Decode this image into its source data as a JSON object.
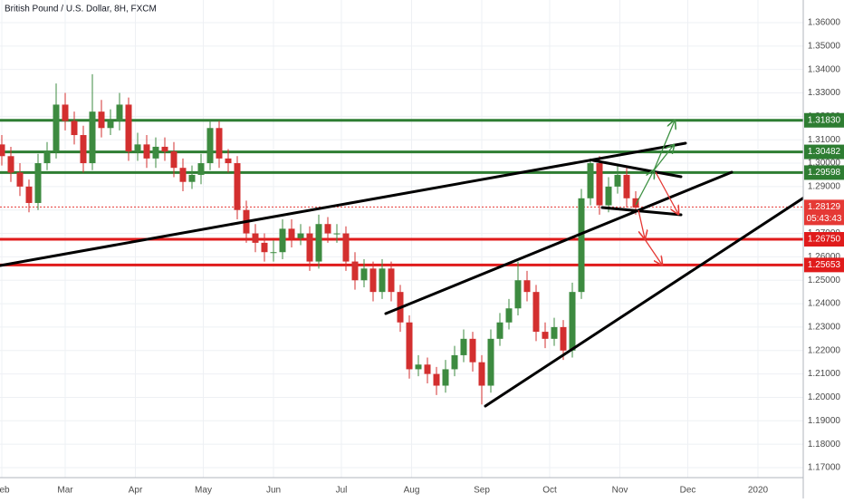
{
  "chart_data": {
    "type": "candlestick",
    "title": "British Pound / U.S. Dollar, 8H, FXCM",
    "up_color": "#3d8b40",
    "down_color": "#d32f2f",
    "grid": true,
    "xlim": [
      -0.8,
      354
    ],
    "ylim": [
      1.16573,
      1.36967
    ],
    "xticks": [
      {
        "value": 0,
        "label": "Feb"
      },
      {
        "value": 28,
        "label": "Mar"
      },
      {
        "value": 59,
        "label": "Apr"
      },
      {
        "value": 89,
        "label": "May"
      },
      {
        "value": 120,
        "label": "Jun"
      },
      {
        "value": 150,
        "label": "Jul"
      },
      {
        "value": 181,
        "label": "Aug"
      },
      {
        "value": 212,
        "label": "Sep"
      },
      {
        "value": 242,
        "label": "Oct"
      },
      {
        "value": 273,
        "label": "Nov"
      },
      {
        "value": 303,
        "label": "Dec"
      },
      {
        "value": 334,
        "label": "2020"
      }
    ],
    "yticks": [
      {
        "value": 1.17,
        "label": "1.17000"
      },
      {
        "value": 1.18,
        "label": "1.18000"
      },
      {
        "value": 1.19,
        "label": "1.19000"
      },
      {
        "value": 1.2,
        "label": "1.20000"
      },
      {
        "value": 1.21,
        "label": "1.21000"
      },
      {
        "value": 1.22,
        "label": "1.22000"
      },
      {
        "value": 1.23,
        "label": "1.23000"
      },
      {
        "value": 1.24,
        "label": "1.24000"
      },
      {
        "value": 1.25,
        "label": "1.25000"
      },
      {
        "value": 1.26,
        "label": "1.26000"
      },
      {
        "value": 1.27,
        "label": "1.27000"
      },
      {
        "value": 1.28,
        "label": "1.28000"
      },
      {
        "value": 1.29,
        "label": "1.29000"
      },
      {
        "value": 1.3,
        "label": "1.30000"
      },
      {
        "value": 1.31,
        "label": "1.31000"
      },
      {
        "value": 1.32,
        "label": "1.32000"
      },
      {
        "value": 1.33,
        "label": "1.33000"
      },
      {
        "value": 1.34,
        "label": "1.34000"
      },
      {
        "value": 1.35,
        "label": "1.35000"
      },
      {
        "value": 1.36,
        "label": "1.36000"
      }
    ],
    "levels": [
      {
        "value": 1.3183,
        "label": "1.31830",
        "color": "#2e7d32"
      },
      {
        "value": 1.30482,
        "label": "1.30482",
        "color": "#2e7d32"
      },
      {
        "value": 1.29598,
        "label": "1.29598",
        "color": "#2e7d32"
      },
      {
        "value": 1.2675,
        "label": "1.26750",
        "color": "#e01b1b"
      },
      {
        "value": 1.25653,
        "label": "1.25653",
        "color": "#e01b1b"
      }
    ],
    "current": {
      "value": 1.28129,
      "label": "1.28129",
      "countdown": "05:43:43",
      "color": "#e53935"
    },
    "x": [
      0,
      4,
      8,
      12,
      16,
      20,
      24,
      28,
      32,
      36,
      40,
      44,
      48,
      52,
      56,
      60,
      64,
      68,
      72,
      76,
      80,
      84,
      88,
      92,
      96,
      100,
      104,
      108,
      112,
      116,
      120,
      124,
      128,
      132,
      136,
      140,
      144,
      148,
      152,
      156,
      160,
      164,
      168,
      172,
      176,
      180,
      184,
      188,
      192,
      196,
      200,
      204,
      208,
      212,
      216,
      220,
      224,
      228,
      232,
      236,
      240,
      244,
      248,
      252,
      256,
      260,
      264,
      268,
      272,
      276,
      280
    ],
    "ohlc": [
      [
        1.308,
        1.312,
        1.299,
        1.303
      ],
      [
        1.303,
        1.307,
        1.292,
        1.296
      ],
      [
        1.296,
        1.3,
        1.286,
        1.29
      ],
      [
        1.29,
        1.293,
        1.279,
        1.283
      ],
      [
        1.283,
        1.304,
        1.28,
        1.3
      ],
      [
        1.3,
        1.309,
        1.297,
        1.305
      ],
      [
        1.305,
        1.334,
        1.302,
        1.325
      ],
      [
        1.325,
        1.33,
        1.314,
        1.318
      ],
      [
        1.318,
        1.322,
        1.308,
        1.312
      ],
      [
        1.312,
        1.316,
        1.296,
        1.3
      ],
      [
        1.3,
        1.338,
        1.297,
        1.322
      ],
      [
        1.322,
        1.327,
        1.311,
        1.315
      ],
      [
        1.315,
        1.323,
        1.312,
        1.318
      ],
      [
        1.318,
        1.33,
        1.314,
        1.325
      ],
      [
        1.325,
        1.328,
        1.301,
        1.305
      ],
      [
        1.305,
        1.313,
        1.301,
        1.308
      ],
      [
        1.308,
        1.312,
        1.298,
        1.302
      ],
      [
        1.302,
        1.311,
        1.298,
        1.307
      ],
      [
        1.307,
        1.311,
        1.301,
        1.305
      ],
      [
        1.305,
        1.309,
        1.294,
        1.298
      ],
      [
        1.298,
        1.302,
        1.288,
        1.292
      ],
      [
        1.292,
        1.299,
        1.289,
        1.295
      ],
      [
        1.295,
        1.304,
        1.291,
        1.3
      ],
      [
        1.3,
        1.318,
        1.297,
        1.315
      ],
      [
        1.315,
        1.318,
        1.298,
        1.302
      ],
      [
        1.302,
        1.306,
        1.296,
        1.3
      ],
      [
        1.3,
        1.303,
        1.276,
        1.28
      ],
      [
        1.28,
        1.284,
        1.266,
        1.27
      ],
      [
        1.27,
        1.274,
        1.262,
        1.266
      ],
      [
        1.266,
        1.27,
        1.258,
        1.262
      ],
      [
        1.262,
        1.267,
        1.258,
        1.262
      ],
      [
        1.262,
        1.276,
        1.259,
        1.272
      ],
      [
        1.272,
        1.276,
        1.264,
        1.268
      ],
      [
        1.268,
        1.274,
        1.265,
        1.27
      ],
      [
        1.27,
        1.273,
        1.254,
        1.258
      ],
      [
        1.258,
        1.278,
        1.255,
        1.274
      ],
      [
        1.274,
        1.277,
        1.266,
        1.27
      ],
      [
        1.27,
        1.274,
        1.266,
        1.27
      ],
      [
        1.27,
        1.273,
        1.254,
        1.258
      ],
      [
        1.258,
        1.262,
        1.246,
        1.25
      ],
      [
        1.25,
        1.259,
        1.247,
        1.255
      ],
      [
        1.255,
        1.258,
        1.241,
        1.245
      ],
      [
        1.245,
        1.259,
        1.242,
        1.255
      ],
      [
        1.255,
        1.258,
        1.241,
        1.245
      ],
      [
        1.245,
        1.248,
        1.228,
        1.232
      ],
      [
        1.232,
        1.235,
        1.208,
        1.212
      ],
      [
        1.212,
        1.218,
        1.209,
        1.214
      ],
      [
        1.214,
        1.217,
        1.206,
        1.21
      ],
      [
        1.21,
        1.213,
        1.201,
        1.205
      ],
      [
        1.205,
        1.216,
        1.202,
        1.212
      ],
      [
        1.212,
        1.222,
        1.209,
        1.218
      ],
      [
        1.218,
        1.229,
        1.215,
        1.225
      ],
      [
        1.225,
        1.228,
        1.211,
        1.215
      ],
      [
        1.215,
        1.218,
        1.197,
        1.205
      ],
      [
        1.205,
        1.229,
        1.202,
        1.225
      ],
      [
        1.225,
        1.236,
        1.222,
        1.232
      ],
      [
        1.232,
        1.242,
        1.229,
        1.238
      ],
      [
        1.238,
        1.258,
        1.235,
        1.25
      ],
      [
        1.25,
        1.254,
        1.241,
        1.245
      ],
      [
        1.245,
        1.248,
        1.224,
        1.228
      ],
      [
        1.228,
        1.232,
        1.221,
        1.225
      ],
      [
        1.225,
        1.234,
        1.222,
        1.23
      ],
      [
        1.23,
        1.233,
        1.216,
        1.22
      ],
      [
        1.22,
        1.249,
        1.217,
        1.245
      ],
      [
        1.245,
        1.289,
        1.242,
        1.285
      ],
      [
        1.285,
        1.302,
        1.282,
        1.3
      ],
      [
        1.3,
        1.303,
        1.278,
        1.282
      ],
      [
        1.282,
        1.294,
        1.279,
        1.29
      ],
      [
        1.29,
        1.299,
        1.287,
        1.295
      ],
      [
        1.295,
        1.298,
        1.281,
        1.285
      ],
      [
        1.285,
        1.288,
        1.278,
        1.281
      ]
    ]
  }
}
